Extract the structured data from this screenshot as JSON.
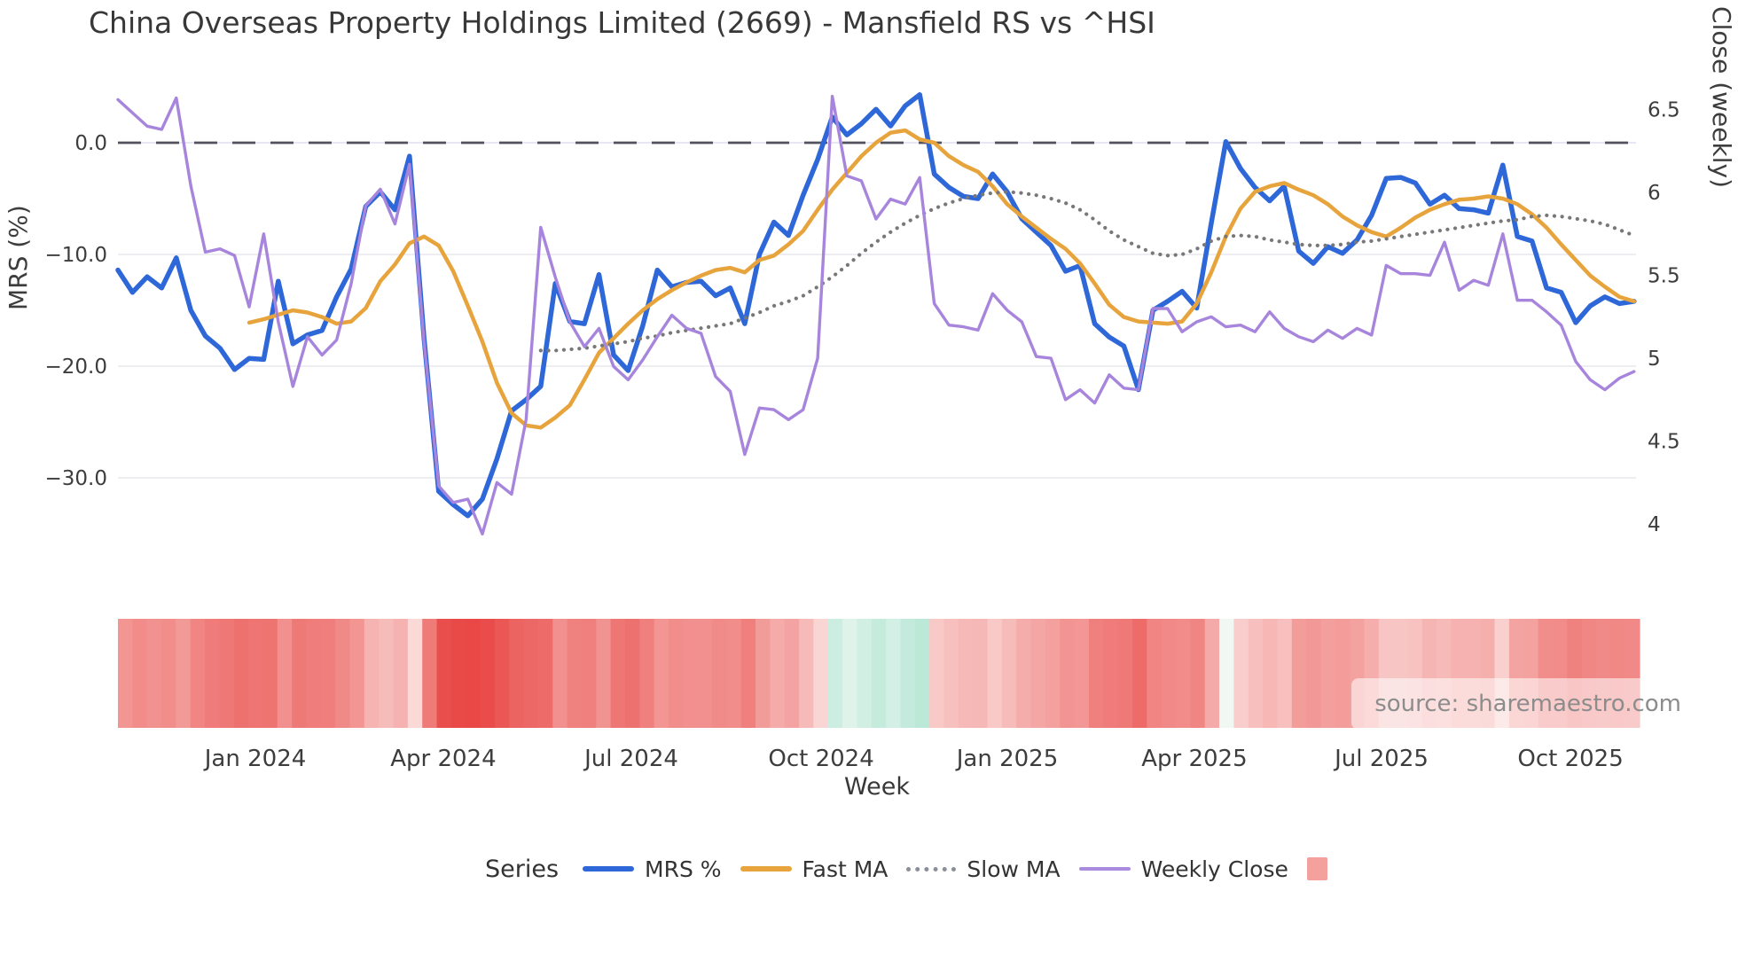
{
  "title": "China Overseas Property Holdings Limited (2669) - Mansfield RS vs ^HSI",
  "source": "source: sharemaestro.com",
  "axes": {
    "left": {
      "label": "MRS (%)",
      "ticks": [
        {
          "label": "0.0",
          "value": 0
        },
        {
          "label": "−10.0",
          "value": -10
        },
        {
          "label": "−20.0",
          "value": -20
        },
        {
          "label": "−30.0",
          "value": -30
        }
      ]
    },
    "right": {
      "label": "Close (weekly)",
      "ticks": [
        {
          "label": "6.5",
          "value": 6.5
        },
        {
          "label": "6",
          "value": 6.0
        },
        {
          "label": "5.5",
          "value": 5.5
        },
        {
          "label": "5",
          "value": 5.0
        },
        {
          "label": "4.5",
          "value": 4.5
        },
        {
          "label": "4",
          "value": 4.0
        }
      ]
    },
    "x": {
      "label": "Week",
      "ticks": [
        {
          "label": "Jan 2024",
          "week": 9.43
        },
        {
          "label": "Apr 2024",
          "week": 22.32
        },
        {
          "label": "Jul 2024",
          "week": 35.22
        },
        {
          "label": "Oct 2024",
          "week": 48.24
        },
        {
          "label": "Jan 2025",
          "week": 61.01
        },
        {
          "label": "Apr 2025",
          "week": 73.84
        },
        {
          "label": "Jul 2025",
          "week": 86.68
        },
        {
          "label": "Oct 2025",
          "week": 99.64
        }
      ]
    }
  },
  "legend": {
    "title": "Series",
    "items": [
      {
        "label": "MRS %",
        "swatch": "line",
        "color": "#2e67d8"
      },
      {
        "label": "Fast MA",
        "swatch": "line",
        "color": "#e8a43c"
      },
      {
        "label": "Slow MA",
        "swatch": "dots",
        "color": "#8a8f98"
      },
      {
        "label": "Weekly Close",
        "swatch": "thin-line",
        "color": "#a98bdf"
      },
      {
        "label": "",
        "swatch": "square",
        "color": "#f4a19e"
      }
    ]
  },
  "colors": {
    "mrs": "#2e67d8",
    "fast_ma": "#e8a43c",
    "slow_ma": "#787878",
    "weekly_close": "#a785dc",
    "zero_line": "#52525e",
    "grid": "#ededf2",
    "zero_grid": "#e7e7f3",
    "heat_red": "#e84341",
    "heat_green": "#b7e7d6",
    "heat_white": "#fdf5f3"
  },
  "chart_data": {
    "type": "line",
    "title": "China Overseas Property Holdings Limited (2669) - Mansfield RS vs ^HSI",
    "xlabel": "Week",
    "x_range_note": "105 weekly points, late Oct 2023 through early Nov 2025",
    "left_ylabel": "MRS (%)",
    "left_ylim": [
      -37,
      6.2
    ],
    "right_ylabel": "Close (weekly)",
    "right_ylim": [
      3.85,
      6.72
    ],
    "grid": "horizontal, at left-axis ticks",
    "legend_position": "bottom center",
    "zero_reference_line": 0,
    "heatmap_strip": "one cell per week below plot; red = negative MRS, green = positive MRS, white = 0",
    "series": [
      {
        "name": "MRS %",
        "axis": "left",
        "style": "solid",
        "color": "#2e67d8",
        "values": [
          -11.4,
          -13.4,
          -12.0,
          -13.0,
          -10.3,
          -15.0,
          -17.3,
          -18.4,
          -20.3,
          -19.3,
          -19.4,
          -12.4,
          -18.0,
          -17.2,
          -16.8,
          -13.8,
          -11.3,
          -5.7,
          -4.4,
          -6.0,
          -1.2,
          -17.5,
          -31.2,
          -32.4,
          -33.4,
          -31.9,
          -28.3,
          -24.0,
          -23.0,
          -21.8,
          -12.6,
          -16.0,
          -16.2,
          -11.8,
          -19.0,
          -20.4,
          -16.4,
          -11.4,
          -12.9,
          -12.5,
          -12.4,
          -13.7,
          -13.0,
          -16.2,
          -10.0,
          -7.1,
          -8.3,
          -4.7,
          -1.5,
          2.3,
          0.7,
          1.7,
          3.0,
          1.5,
          3.3,
          4.3,
          -2.8,
          -4.0,
          -4.8,
          -5.0,
          -2.8,
          -4.4,
          -6.8,
          -8.0,
          -9.2,
          -11.5,
          -11.0,
          -16.2,
          -17.4,
          -18.2,
          -22.1,
          -15.0,
          -14.2,
          -13.3,
          -14.8,
          -7.2,
          0.1,
          -2.3,
          -4.0,
          -5.2,
          -3.9,
          -9.7,
          -10.8,
          -9.3,
          -9.9,
          -8.7,
          -6.5,
          -3.2,
          -3.1,
          -3.6,
          -5.5,
          -4.7,
          -5.9,
          -6.0,
          -6.3,
          -2.0,
          -8.4,
          -8.8,
          -13.0,
          -13.4,
          -16.1,
          -14.6,
          -13.8,
          -14.4,
          -14.2
        ]
      },
      {
        "name": "Fast MA",
        "axis": "left",
        "style": "solid",
        "color": "#e8a43c",
        "values": [
          null,
          null,
          null,
          null,
          null,
          null,
          null,
          null,
          null,
          -16.1,
          -15.8,
          -15.4,
          -15.0,
          -15.2,
          -15.6,
          -16.2,
          -16.0,
          -14.8,
          -12.4,
          -10.9,
          -9.0,
          -8.4,
          -9.2,
          -11.5,
          -14.6,
          -17.8,
          -21.5,
          -24.2,
          -25.3,
          -25.5,
          -24.6,
          -23.5,
          -21.2,
          -18.8,
          -17.5,
          -16.2,
          -15.0,
          -14.0,
          -13.2,
          -12.5,
          -11.9,
          -11.4,
          -11.2,
          -11.6,
          -10.5,
          -10.1,
          -9.1,
          -7.9,
          -6.0,
          -4.2,
          -2.7,
          -1.2,
          0.0,
          0.9,
          1.1,
          0.3,
          0.0,
          -1.2,
          -2.0,
          -2.6,
          -3.9,
          -5.5,
          -6.6,
          -7.6,
          -8.6,
          -9.5,
          -10.8,
          -12.6,
          -14.5,
          -15.6,
          -16.0,
          -16.1,
          -16.2,
          -16.0,
          -14.4,
          -11.6,
          -8.4,
          -5.9,
          -4.4,
          -3.9,
          -3.6,
          -4.2,
          -4.7,
          -5.5,
          -6.6,
          -7.4,
          -8.0,
          -8.4,
          -7.6,
          -6.7,
          -6.0,
          -5.5,
          -5.1,
          -5.0,
          -4.8,
          -5.0,
          -5.5,
          -6.4,
          -7.6,
          -9.1,
          -10.5,
          -11.9,
          -12.9,
          -13.8,
          -14.2
        ]
      },
      {
        "name": "Slow MA",
        "axis": "left",
        "style": "dotted",
        "color": "#787878",
        "values": [
          null,
          null,
          null,
          null,
          null,
          null,
          null,
          null,
          null,
          null,
          null,
          null,
          null,
          null,
          null,
          null,
          null,
          null,
          null,
          null,
          null,
          null,
          null,
          null,
          null,
          null,
          null,
          null,
          null,
          -18.6,
          -18.6,
          -18.5,
          -18.4,
          -18.2,
          -18.0,
          -17.8,
          -17.5,
          -17.3,
          -17.0,
          -16.8,
          -16.6,
          -16.4,
          -16.2,
          -15.7,
          -15.2,
          -14.6,
          -14.2,
          -13.7,
          -12.9,
          -12.0,
          -11.0,
          -9.9,
          -8.9,
          -8.0,
          -7.2,
          -6.5,
          -5.9,
          -5.4,
          -5.0,
          -4.7,
          -4.5,
          -4.4,
          -4.5,
          -4.7,
          -5.0,
          -5.4,
          -6.0,
          -6.9,
          -7.9,
          -8.7,
          -9.3,
          -9.9,
          -10.1,
          -10.0,
          -9.5,
          -8.8,
          -8.4,
          -8.3,
          -8.4,
          -8.7,
          -8.9,
          -9.1,
          -9.2,
          -9.2,
          -9.1,
          -8.9,
          -8.8,
          -8.6,
          -8.4,
          -8.2,
          -8.0,
          -7.8,
          -7.6,
          -7.4,
          -7.2,
          -7.0,
          -6.9,
          -6.6,
          -6.5,
          -6.6,
          -6.8,
          -7.0,
          -7.3,
          -7.8,
          -8.3
        ]
      },
      {
        "name": "Weekly Close",
        "axis": "right",
        "style": "solid",
        "color": "#a785dc",
        "values": [
          6.56,
          6.48,
          6.4,
          6.38,
          6.57,
          6.04,
          5.64,
          5.66,
          5.62,
          5.31,
          5.75,
          5.22,
          4.83,
          5.13,
          5.02,
          5.11,
          5.45,
          5.92,
          6.02,
          5.81,
          6.17,
          5.1,
          4.23,
          4.13,
          4.15,
          3.94,
          4.25,
          4.18,
          4.63,
          5.79,
          5.49,
          5.22,
          5.07,
          5.18,
          4.95,
          4.87,
          4.99,
          5.13,
          5.26,
          5.18,
          5.15,
          4.89,
          4.8,
          4.42,
          4.7,
          4.69,
          4.63,
          4.69,
          5.0,
          6.58,
          6.1,
          6.07,
          5.84,
          5.96,
          5.93,
          6.09,
          5.33,
          5.2,
          5.19,
          5.17,
          5.39,
          5.29,
          5.22,
          5.01,
          5.0,
          4.75,
          4.81,
          4.73,
          4.9,
          4.82,
          4.81,
          5.3,
          5.3,
          5.16,
          5.22,
          5.25,
          5.19,
          5.2,
          5.16,
          5.28,
          5.18,
          5.13,
          5.1,
          5.17,
          5.12,
          5.18,
          5.14,
          5.56,
          5.51,
          5.51,
          5.5,
          5.7,
          5.41,
          5.47,
          5.44,
          5.75,
          5.35,
          5.35,
          5.28,
          5.2,
          4.98,
          4.87,
          4.81,
          4.88,
          4.92
        ]
      }
    ]
  }
}
